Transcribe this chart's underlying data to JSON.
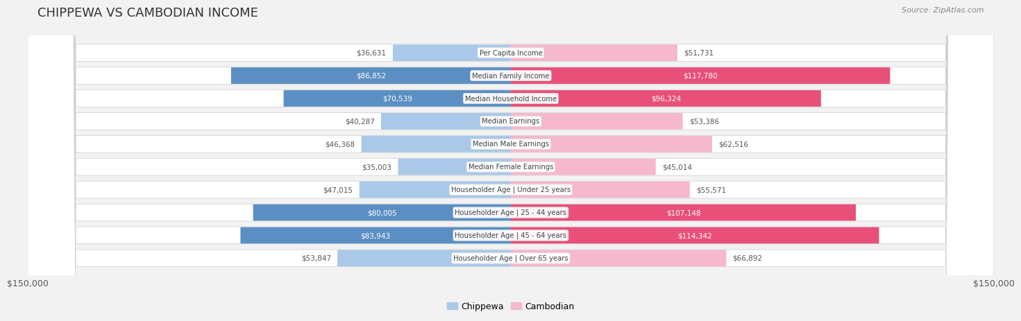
{
  "title": "CHIPPEWA VS CAMBODIAN INCOME",
  "source": "Source: ZipAtlas.com",
  "categories": [
    "Per Capita Income",
    "Median Family Income",
    "Median Household Income",
    "Median Earnings",
    "Median Male Earnings",
    "Median Female Earnings",
    "Householder Age | Under 25 years",
    "Householder Age | 25 - 44 years",
    "Householder Age | 45 - 64 years",
    "Householder Age | Over 65 years"
  ],
  "chippewa_values": [
    36631,
    86852,
    70539,
    40287,
    46368,
    35003,
    47015,
    80005,
    83943,
    53847
  ],
  "cambodian_values": [
    51731,
    117780,
    96324,
    53386,
    62516,
    45014,
    55571,
    107148,
    114342,
    66892
  ],
  "chippewa_labels": [
    "$36,631",
    "$86,852",
    "$70,539",
    "$40,287",
    "$46,368",
    "$35,003",
    "$47,015",
    "$80,005",
    "$83,943",
    "$53,847"
  ],
  "cambodian_labels": [
    "$51,731",
    "$117,780",
    "$96,324",
    "$53,386",
    "$62,516",
    "$45,014",
    "$55,571",
    "$107,148",
    "$114,342",
    "$66,892"
  ],
  "chippewa_color_light": "#aac8e8",
  "chippewa_color_dark": "#5b8fc4",
  "cambodian_color_light": "#f5b8cc",
  "cambodian_color_dark": "#e8507a",
  "chippewa_threshold": 70000,
  "cambodian_threshold": 90000,
  "max_value": 150000,
  "legend_chippewa": "Chippewa",
  "legend_cambodian": "Cambodian",
  "background_color": "#f2f2f2",
  "row_bg_color": "#ffffff",
  "axis_label_left": "$150,000",
  "axis_label_right": "$150,000",
  "label_outside_color": "#555555",
  "label_inside_color": "#ffffff",
  "cat_label_color": "#444444"
}
